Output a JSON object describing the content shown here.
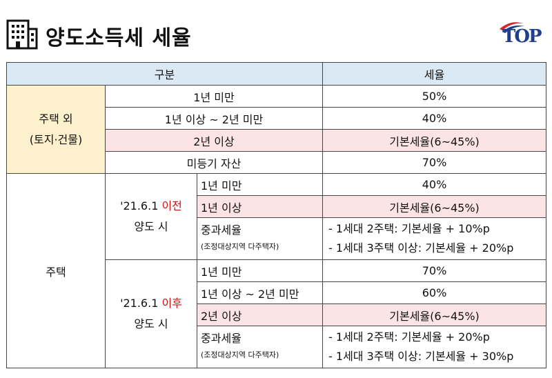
{
  "header": {
    "title": "양도소득세 세율",
    "logo_text": "TOP"
  },
  "table": {
    "col_headers": [
      "구분",
      "세율"
    ],
    "section1": {
      "category_line1": "주택 외",
      "category_line2": "(토지·건물)",
      "rows": [
        {
          "period": "1년 미만",
          "rate": "50%"
        },
        {
          "period": "1년 이상 ~ 2년 미만",
          "rate": "40%"
        },
        {
          "period": "2년 이상",
          "rate": "기본세율(6~45%)"
        },
        {
          "period": "미등기 자산",
          "rate": "70%"
        }
      ]
    },
    "section2": {
      "category": "주택",
      "before": {
        "date_prefix": "'21.6.1 ",
        "date_suffix": "이전",
        "label2": "양도 시",
        "rows": [
          {
            "period": "1년 미만",
            "rate": "40%"
          },
          {
            "period": "1년 이상",
            "rate": "기본세율(6~45%)"
          }
        ],
        "heavy_label": "중과세율",
        "heavy_sub": "(조정대상지역 다주택자)",
        "heavy_rates": [
          "- 1세대 2주택: 기본세율 + 10%p",
          "- 1세대 3주택 이상: 기본세율 + 20%p"
        ]
      },
      "after": {
        "date_prefix": "'21.6.1 ",
        "date_suffix": "이후",
        "label2": "양도 시",
        "rows": [
          {
            "period": "1년 미만",
            "rate": "70%"
          },
          {
            "period": "1년 이상 ~ 2년 미만",
            "rate": "60%"
          },
          {
            "period": "2년 이상",
            "rate": "기본세율(6~45%)"
          }
        ],
        "heavy_label": "중과세율",
        "heavy_sub": "(조정대상지역 다주택자)",
        "heavy_rates": [
          "- 1세대 2주택: 기본세율 + 20%p",
          "- 1세대 3주택 이상: 기본세율 + 30%p"
        ]
      }
    }
  }
}
